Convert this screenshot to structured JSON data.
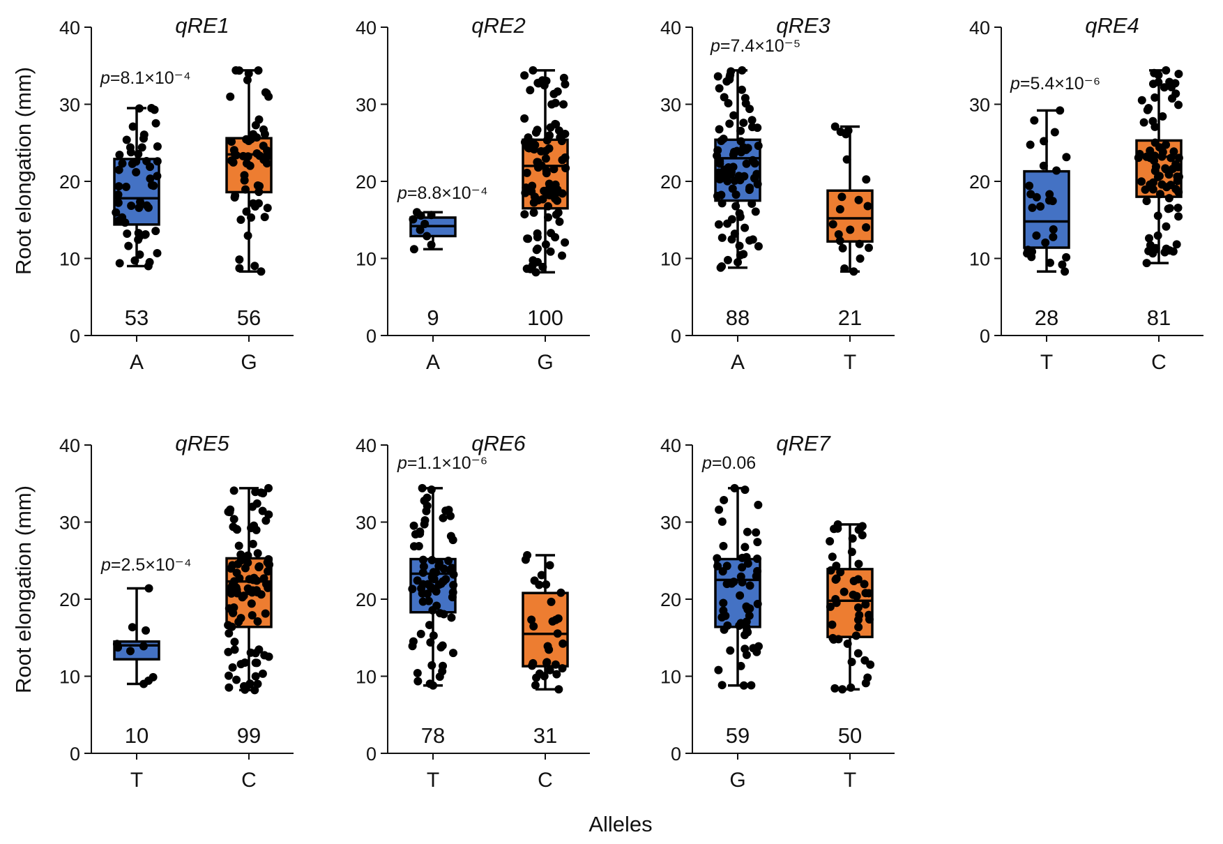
{
  "figure": {
    "ylabel": "Root elongation (mm)",
    "xlabel": "Alleles",
    "colors": {
      "first": "#4472C4",
      "second": "#ED7D31"
    }
  },
  "chart_data": [
    {
      "type": "box",
      "title": "qRE1",
      "ylim": [
        0,
        40
      ],
      "yticks": [
        0,
        10,
        20,
        30,
        40
      ],
      "p_prefix": "p",
      "p_text": "=8.1×10⁻⁴",
      "p_over": 0,
      "groups": [
        {
          "allele": "A",
          "n": 53,
          "whisker_low": 9,
          "q1": 14.4,
          "median": 17.8,
          "q3": 22.9,
          "whisker_high": 29.5,
          "color": "first"
        },
        {
          "allele": "G",
          "n": 56,
          "whisker_low": 8.3,
          "q1": 18.6,
          "median": 23.5,
          "q3": 25.6,
          "whisker_high": 34.4,
          "color": "second"
        }
      ]
    },
    {
      "type": "box",
      "title": "qRE2",
      "ylim": [
        0,
        40
      ],
      "yticks": [
        0,
        10,
        20,
        30,
        40
      ],
      "p_prefix": "p",
      "p_text": "=8.8×10⁻⁴",
      "p_over": 0,
      "groups": [
        {
          "allele": "A",
          "n": 9,
          "whisker_low": 11.2,
          "q1": 12.9,
          "median": 14.2,
          "q3": 15.3,
          "whisker_high": 16,
          "color": "first"
        },
        {
          "allele": "G",
          "n": 100,
          "whisker_low": 8.2,
          "q1": 16.5,
          "median": 22,
          "q3": 25.4,
          "whisker_high": 34.4,
          "color": "second"
        }
      ]
    },
    {
      "type": "box",
      "title": "qRE3",
      "ylim": [
        0,
        40
      ],
      "yticks": [
        0,
        10,
        20,
        30,
        40
      ],
      "p_prefix": "p",
      "p_text": "=7.4×10⁻⁵",
      "p_over": 0,
      "groups": [
        {
          "allele": "A",
          "n": 88,
          "whisker_low": 8.8,
          "q1": 17.5,
          "median": 23,
          "q3": 25.4,
          "whisker_high": 34.4,
          "color": "first"
        },
        {
          "allele": "T",
          "n": 21,
          "whisker_low": 8.3,
          "q1": 12.2,
          "median": 15.2,
          "q3": 18.8,
          "whisker_high": 27.1,
          "color": "second"
        }
      ]
    },
    {
      "type": "box",
      "title": "qRE4",
      "ylim": [
        0,
        40
      ],
      "yticks": [
        0,
        10,
        20,
        30,
        40
      ],
      "p_prefix": "p",
      "p_text": "=5.4×10⁻⁶",
      "p_over": 0,
      "groups": [
        {
          "allele": "T",
          "n": 28,
          "whisker_low": 8.3,
          "q1": 11.4,
          "median": 14.8,
          "q3": 21.3,
          "whisker_high": 29.2,
          "color": "first"
        },
        {
          "allele": "C",
          "n": 81,
          "whisker_low": 9.4,
          "q1": 18,
          "median": 23.2,
          "q3": 25.3,
          "whisker_high": 34.4,
          "color": "second"
        }
      ]
    },
    {
      "type": "box",
      "title": "qRE5",
      "ylim": [
        0,
        40
      ],
      "yticks": [
        0,
        10,
        20,
        30,
        40
      ],
      "p_prefix": "p",
      "p_text": "=2.5×10⁻⁴",
      "p_over": 0,
      "groups": [
        {
          "allele": "T",
          "n": 10,
          "whisker_low": 9,
          "q1": 12.2,
          "median": 14,
          "q3": 14.5,
          "whisker_high": 21.4,
          "color": "first"
        },
        {
          "allele": "C",
          "n": 99,
          "whisker_low": 8.2,
          "q1": 16.4,
          "median": 22.3,
          "q3": 25.3,
          "whisker_high": 34.4,
          "color": "second"
        }
      ]
    },
    {
      "type": "box",
      "title": "qRE6",
      "ylim": [
        0,
        40
      ],
      "yticks": [
        0,
        10,
        20,
        30,
        40
      ],
      "p_prefix": "p",
      "p_text": "=1.1×10⁻⁶",
      "p_over": 0,
      "groups": [
        {
          "allele": "T",
          "n": 78,
          "whisker_low": 8.8,
          "q1": 18.3,
          "median": 23.3,
          "q3": 25.2,
          "whisker_high": 34.4,
          "color": "first"
        },
        {
          "allele": "C",
          "n": 31,
          "whisker_low": 8.3,
          "q1": 11.3,
          "median": 15.5,
          "q3": 20.8,
          "whisker_high": 25.7,
          "color": "second"
        }
      ]
    },
    {
      "type": "box",
      "title": "qRE7",
      "ylim": [
        0,
        40
      ],
      "yticks": [
        0,
        10,
        20,
        30,
        40
      ],
      "p_prefix": "p",
      "p_text": "=0.06",
      "p_over": 0,
      "groups": [
        {
          "allele": "G",
          "n": 59,
          "whisker_low": 8.8,
          "q1": 16.4,
          "median": 22.5,
          "q3": 25.2,
          "whisker_high": 34.4,
          "color": "first"
        },
        {
          "allele": "T",
          "n": 50,
          "whisker_low": 8.3,
          "q1": 15.1,
          "median": 19.8,
          "q3": 23.9,
          "whisker_high": 29.7,
          "color": "second"
        }
      ]
    }
  ]
}
